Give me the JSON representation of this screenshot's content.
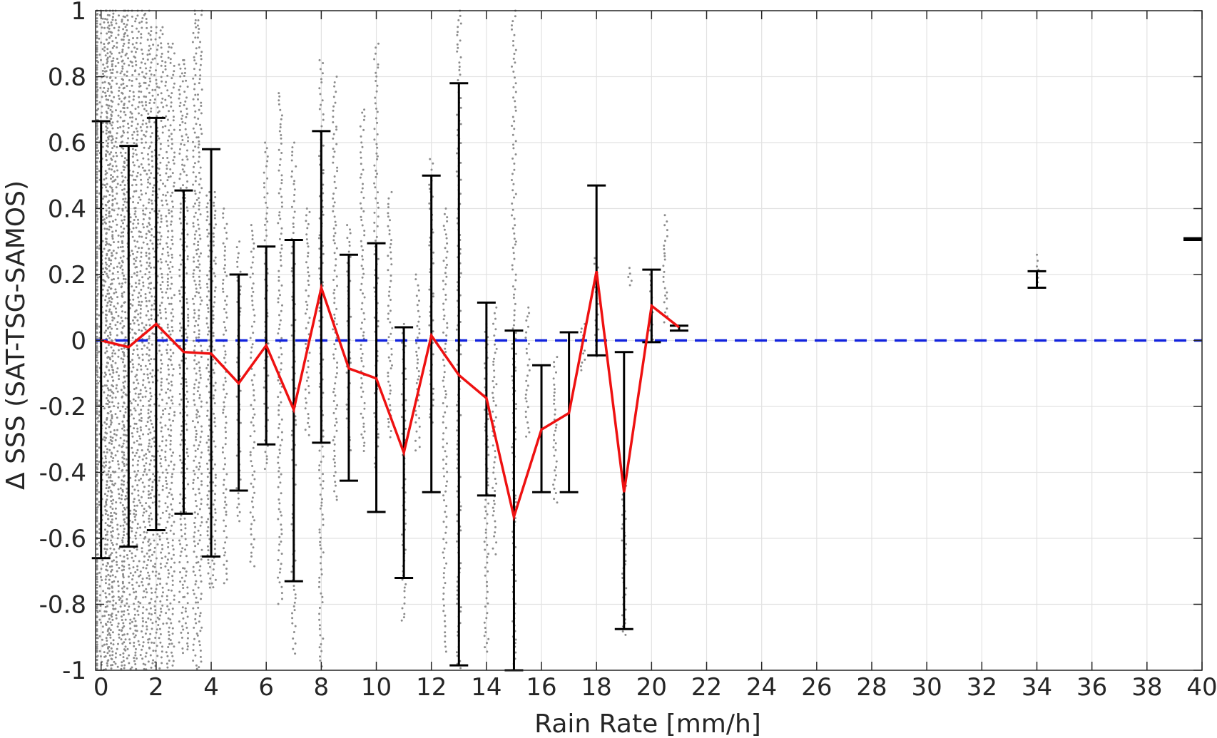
{
  "chart_data": {
    "type": "line",
    "xlabel": "Rain Rate [mm/h]",
    "ylabel": "Δ SSS (SAT-TSG-SAMOS)",
    "xlim": [
      -0.2,
      40
    ],
    "ylim": [
      -1,
      1
    ],
    "xticks": [
      0,
      2,
      4,
      6,
      8,
      10,
      12,
      14,
      16,
      18,
      20,
      22,
      24,
      26,
      28,
      30,
      32,
      34,
      36,
      38,
      40
    ],
    "yticks": [
      -1,
      -0.8,
      -0.6,
      -0.4,
      -0.2,
      0,
      0.2,
      0.4,
      0.6,
      0.8,
      1
    ],
    "grid": true,
    "colors": {
      "mean_line": "#ee1111",
      "zero_line": "#1122dd",
      "error_bars": "#000000",
      "scatter": "#8c8c8c",
      "axes": "#262626",
      "grid": "#e2e2e2"
    },
    "zero_line": {
      "y": 0,
      "style": "dashed"
    },
    "mean_line": {
      "x": [
        0,
        1,
        2,
        3,
        4,
        5,
        6,
        7,
        8,
        9,
        10,
        11,
        12,
        13,
        14,
        15,
        16,
        17,
        18,
        19,
        20,
        21
      ],
      "y": [
        0.0,
        -0.02,
        0.05,
        -0.035,
        -0.04,
        -0.13,
        -0.015,
        -0.21,
        0.16,
        -0.085,
        -0.115,
        -0.34,
        0.015,
        -0.105,
        -0.175,
        -0.535,
        -0.27,
        -0.22,
        0.21,
        -0.46,
        0.105,
        0.04
      ]
    },
    "error_bars": [
      {
        "x": 0,
        "low": -0.66,
        "high": 0.665
      },
      {
        "x": 1,
        "low": -0.625,
        "high": 0.59
      },
      {
        "x": 2,
        "low": -0.575,
        "high": 0.675
      },
      {
        "x": 3,
        "low": -0.525,
        "high": 0.455
      },
      {
        "x": 4,
        "low": -0.655,
        "high": 0.58
      },
      {
        "x": 5,
        "low": -0.455,
        "high": 0.2
      },
      {
        "x": 6,
        "low": -0.315,
        "high": 0.285
      },
      {
        "x": 7,
        "low": -0.73,
        "high": 0.305
      },
      {
        "x": 8,
        "low": -0.31,
        "high": 0.635
      },
      {
        "x": 9,
        "low": -0.425,
        "high": 0.26
      },
      {
        "x": 10,
        "low": -0.52,
        "high": 0.295
      },
      {
        "x": 11,
        "low": -0.72,
        "high": 0.04
      },
      {
        "x": 12,
        "low": -0.46,
        "high": 0.5
      },
      {
        "x": 13,
        "low": -0.985,
        "high": 0.78
      },
      {
        "x": 14,
        "low": -0.47,
        "high": 0.115
      },
      {
        "x": 15,
        "low": -1.0,
        "high": 0.03
      },
      {
        "x": 16,
        "low": -0.46,
        "high": -0.075
      },
      {
        "x": 17,
        "low": -0.46,
        "high": 0.025
      },
      {
        "x": 18,
        "low": -0.045,
        "high": 0.47
      },
      {
        "x": 19,
        "low": -0.875,
        "high": -0.035
      },
      {
        "x": 20,
        "low": -0.005,
        "high": 0.215
      },
      {
        "x": 21,
        "low": 0.03,
        "high": 0.045
      },
      {
        "x": 34,
        "low": 0.16,
        "high": 0.21
      },
      {
        "x": 40,
        "low": 0.305,
        "high": 0.31
      }
    ],
    "scatter_columns": [
      {
        "x": 0,
        "low": -1,
        "high": 1,
        "density": 5
      },
      {
        "x": 0.5,
        "low": -1,
        "high": 1,
        "density": 4
      },
      {
        "x": 1,
        "low": -1,
        "high": 1,
        "density": 3
      },
      {
        "x": 1.5,
        "low": -1,
        "high": 1,
        "density": 3
      },
      {
        "x": 2,
        "low": -1,
        "high": 0.95,
        "density": 3
      },
      {
        "x": 2.5,
        "low": -1,
        "high": 0.9,
        "density": 2
      },
      {
        "x": 3,
        "low": -0.95,
        "high": 0.85,
        "density": 2
      },
      {
        "x": 3.5,
        "low": -1,
        "high": 1,
        "density": 2
      },
      {
        "x": 4,
        "low": -0.75,
        "high": 0.45,
        "density": 2
      },
      {
        "x": 4.5,
        "low": -0.75,
        "high": 0.4,
        "density": 1
      },
      {
        "x": 5,
        "low": -0.55,
        "high": 0.3,
        "density": 1
      },
      {
        "x": 5.5,
        "low": -0.7,
        "high": 0.35,
        "density": 1
      },
      {
        "x": 6,
        "low": -0.4,
        "high": 0.6,
        "density": 1
      },
      {
        "x": 6.5,
        "low": -0.8,
        "high": 0.75,
        "density": 1
      },
      {
        "x": 7,
        "low": -0.95,
        "high": 0.6,
        "density": 1
      },
      {
        "x": 7.5,
        "low": -0.3,
        "high": 0.4,
        "density": 1
      },
      {
        "x": 8,
        "low": -1,
        "high": 0.85,
        "density": 1
      },
      {
        "x": 8.5,
        "low": -0.5,
        "high": 0.8,
        "density": 1
      },
      {
        "x": 9,
        "low": -0.35,
        "high": 0.35,
        "density": 1
      },
      {
        "x": 9.5,
        "low": -0.35,
        "high": 0.7,
        "density": 1
      },
      {
        "x": 10,
        "low": -0.4,
        "high": 0.9,
        "density": 1
      },
      {
        "x": 10.5,
        "low": -0.3,
        "high": 0.45,
        "density": 1
      },
      {
        "x": 11,
        "low": -0.85,
        "high": 0.05,
        "density": 1
      },
      {
        "x": 11.5,
        "low": -0.35,
        "high": 0.2,
        "density": 1
      },
      {
        "x": 12,
        "low": -0.25,
        "high": 0.55,
        "density": 1
      },
      {
        "x": 12.5,
        "low": -0.95,
        "high": 0.4,
        "density": 1
      },
      {
        "x": 13,
        "low": -1,
        "high": 1,
        "density": 1
      },
      {
        "x": 14,
        "low": -0.95,
        "high": 0.05,
        "density": 1
      },
      {
        "x": 14.3,
        "low": -0.65,
        "high": 0.1,
        "density": 1
      },
      {
        "x": 15,
        "low": -1,
        "high": 1,
        "density": 1
      },
      {
        "x": 15.5,
        "low": -0.3,
        "high": 0.1,
        "density": 1
      },
      {
        "x": 16.5,
        "low": -0.5,
        "high": -0.05,
        "density": 1
      },
      {
        "x": 17.5,
        "low": -0.1,
        "high": 0.05,
        "density": 1
      },
      {
        "x": 18,
        "low": -0.05,
        "high": 0.25,
        "density": 1
      },
      {
        "x": 19,
        "low": -0.9,
        "high": -0.4,
        "density": 1
      },
      {
        "x": 19.2,
        "low": 0.15,
        "high": 0.22,
        "density": 1
      },
      {
        "x": 20,
        "low": 0.0,
        "high": 0.2,
        "density": 1
      },
      {
        "x": 20.5,
        "low": 0.05,
        "high": 0.38,
        "density": 1
      },
      {
        "x": 34,
        "low": 0.17,
        "high": 0.26,
        "density": 1
      }
    ]
  }
}
